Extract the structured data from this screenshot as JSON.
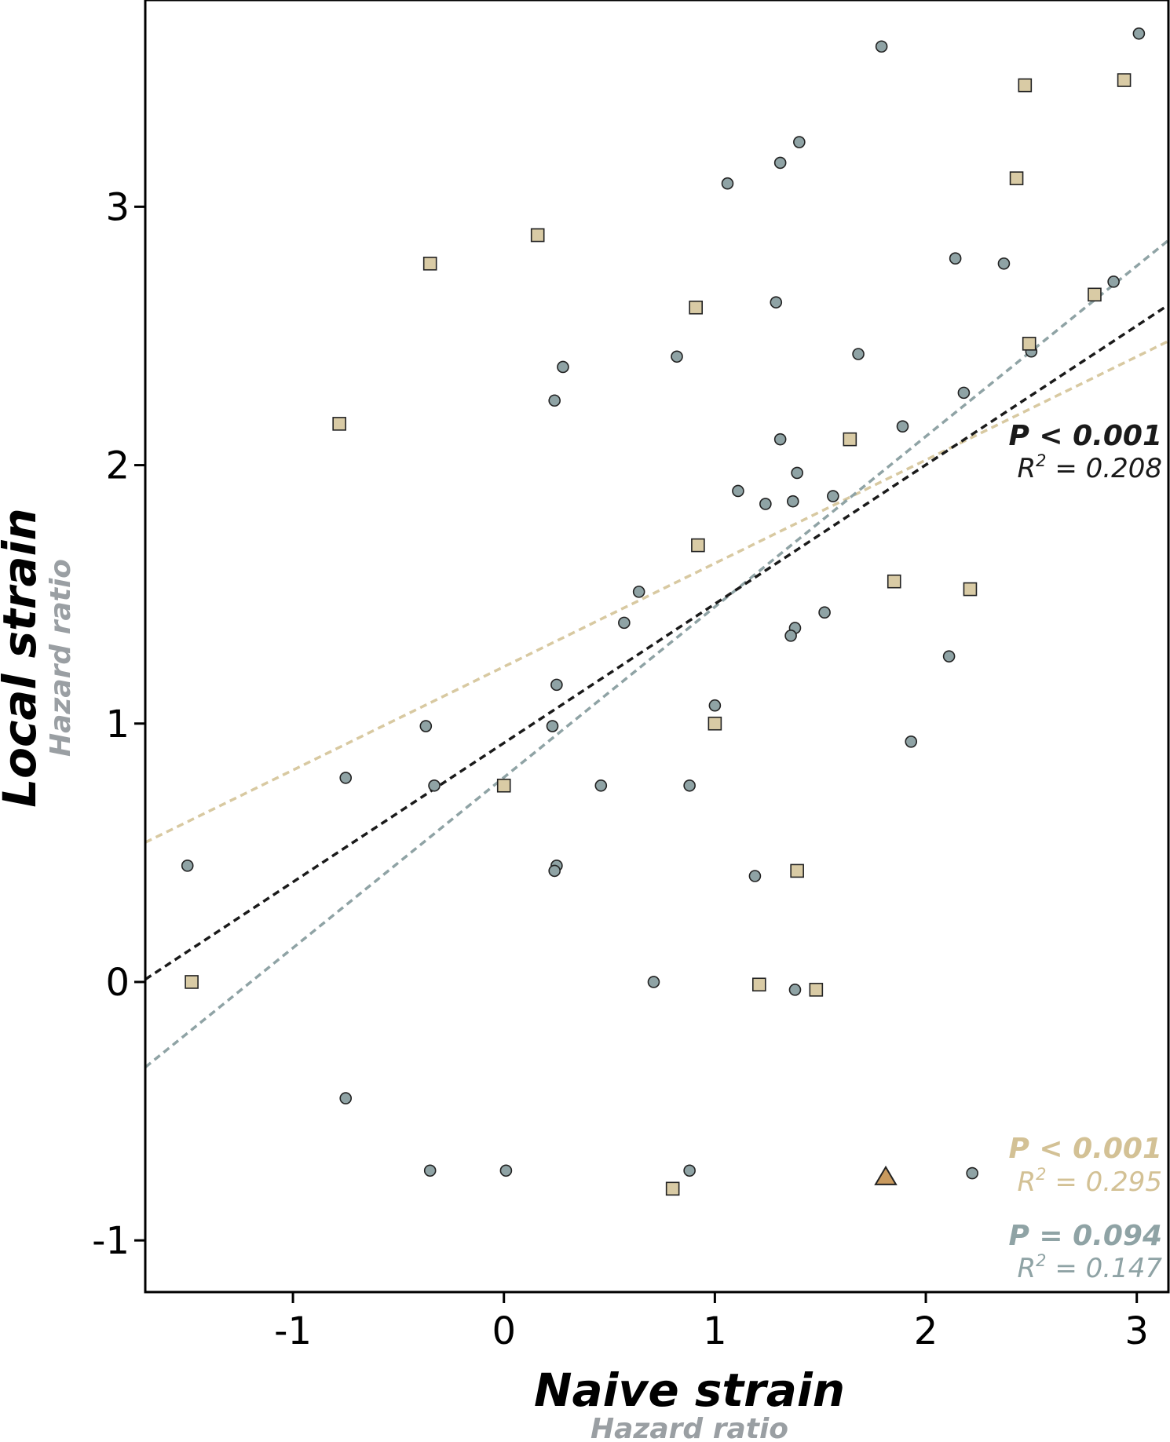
{
  "chart_data": {
    "type": "scatter",
    "xlabel": "Naive strain",
    "xlabel_sub": "Hazard ratio",
    "ylabel": "Local strain",
    "ylabel_sub": "Hazard ratio",
    "xlim": [
      -1.7,
      3.15
    ],
    "ylim": [
      -1.2,
      3.8
    ],
    "xticks": [
      -1,
      0,
      1,
      2,
      3
    ],
    "yticks": [
      -1,
      0,
      1,
      2,
      3
    ],
    "grid": false,
    "legend": "none",
    "colors": {
      "circle_fill": "#8fa3a5",
      "square_fill": "#d9cba5",
      "triangle_fill": "#c99a5e",
      "line_all": "#1a1a1a",
      "line_square": "#d8c9a1",
      "line_circle": "#8fa3a5"
    },
    "series": [
      {
        "marker": "circle",
        "x": [
          1.79,
          3.01,
          1.4,
          1.31,
          1.06,
          2.14,
          2.37,
          1.29,
          2.89,
          2.5,
          0.82,
          1.68,
          0.28,
          0.24,
          2.18,
          1.89,
          1.31,
          1.39,
          1.11,
          1.24,
          1.37,
          1.56,
          0.64,
          1.52,
          0.57,
          1.38,
          1.36,
          2.11,
          0.25,
          1.0,
          -0.37,
          0.23,
          1.93,
          -0.75,
          -0.33,
          0.46,
          0.88,
          -1.5,
          0.25,
          0.24,
          1.19,
          0.71,
          1.38,
          -0.75,
          -0.35,
          0.01,
          0.88,
          2.22
        ],
        "y": [
          3.62,
          3.67,
          3.25,
          3.17,
          3.09,
          2.8,
          2.78,
          2.63,
          2.71,
          2.44,
          2.42,
          2.43,
          2.38,
          2.25,
          2.28,
          2.15,
          2.1,
          1.97,
          1.9,
          1.85,
          1.86,
          1.88,
          1.51,
          1.43,
          1.39,
          1.37,
          1.34,
          1.26,
          1.15,
          1.07,
          0.99,
          0.99,
          0.93,
          0.79,
          0.76,
          0.76,
          0.76,
          0.45,
          0.45,
          0.43,
          0.41,
          0.0,
          -0.03,
          -0.45,
          -0.73,
          -0.73,
          -0.73,
          -0.74
        ]
      },
      {
        "marker": "square",
        "x": [
          2.47,
          2.94,
          2.43,
          0.16,
          -0.35,
          0.91,
          2.8,
          2.49,
          -0.78,
          1.64,
          0.92,
          1.85,
          2.21,
          1.0,
          0.0,
          1.39,
          -1.48,
          1.21,
          1.48,
          0.8
        ],
        "y": [
          3.47,
          3.49,
          3.11,
          2.89,
          2.78,
          2.61,
          2.66,
          2.47,
          2.16,
          2.1,
          1.69,
          1.55,
          1.52,
          1.0,
          0.76,
          0.43,
          0.0,
          -0.01,
          -0.03,
          -0.8
        ]
      },
      {
        "marker": "triangle",
        "x": [
          1.81
        ],
        "y": [
          -0.75
        ]
      }
    ],
    "trendlines": [
      {
        "color_key": "line_square",
        "x": [
          -1.7,
          3.15
        ],
        "y": [
          0.54,
          2.48
        ]
      },
      {
        "color_key": "line_circle",
        "x": [
          -1.7,
          3.15
        ],
        "y": [
          -0.33,
          2.87
        ]
      },
      {
        "color_key": "line_all",
        "x": [
          -1.7,
          3.15
        ],
        "y": [
          0.01,
          2.62
        ]
      }
    ],
    "annotations": [
      {
        "p": "P < 0.001",
        "r_prefix": "R",
        "r_sup": "2",
        "r_value": " = 0.208",
        "color": "#1a1a1a",
        "position": "middle-right"
      },
      {
        "p": "P < 0.001",
        "r_prefix": "R",
        "r_sup": "2",
        "r_value": " = 0.295",
        "color": "#d3c195",
        "position": "bottom-right"
      },
      {
        "p": "P = 0.094",
        "r_prefix": "R",
        "r_sup": "2",
        "r_value": " = 0.147",
        "color": "#8fa3a5",
        "position": "bottom-right"
      }
    ]
  }
}
